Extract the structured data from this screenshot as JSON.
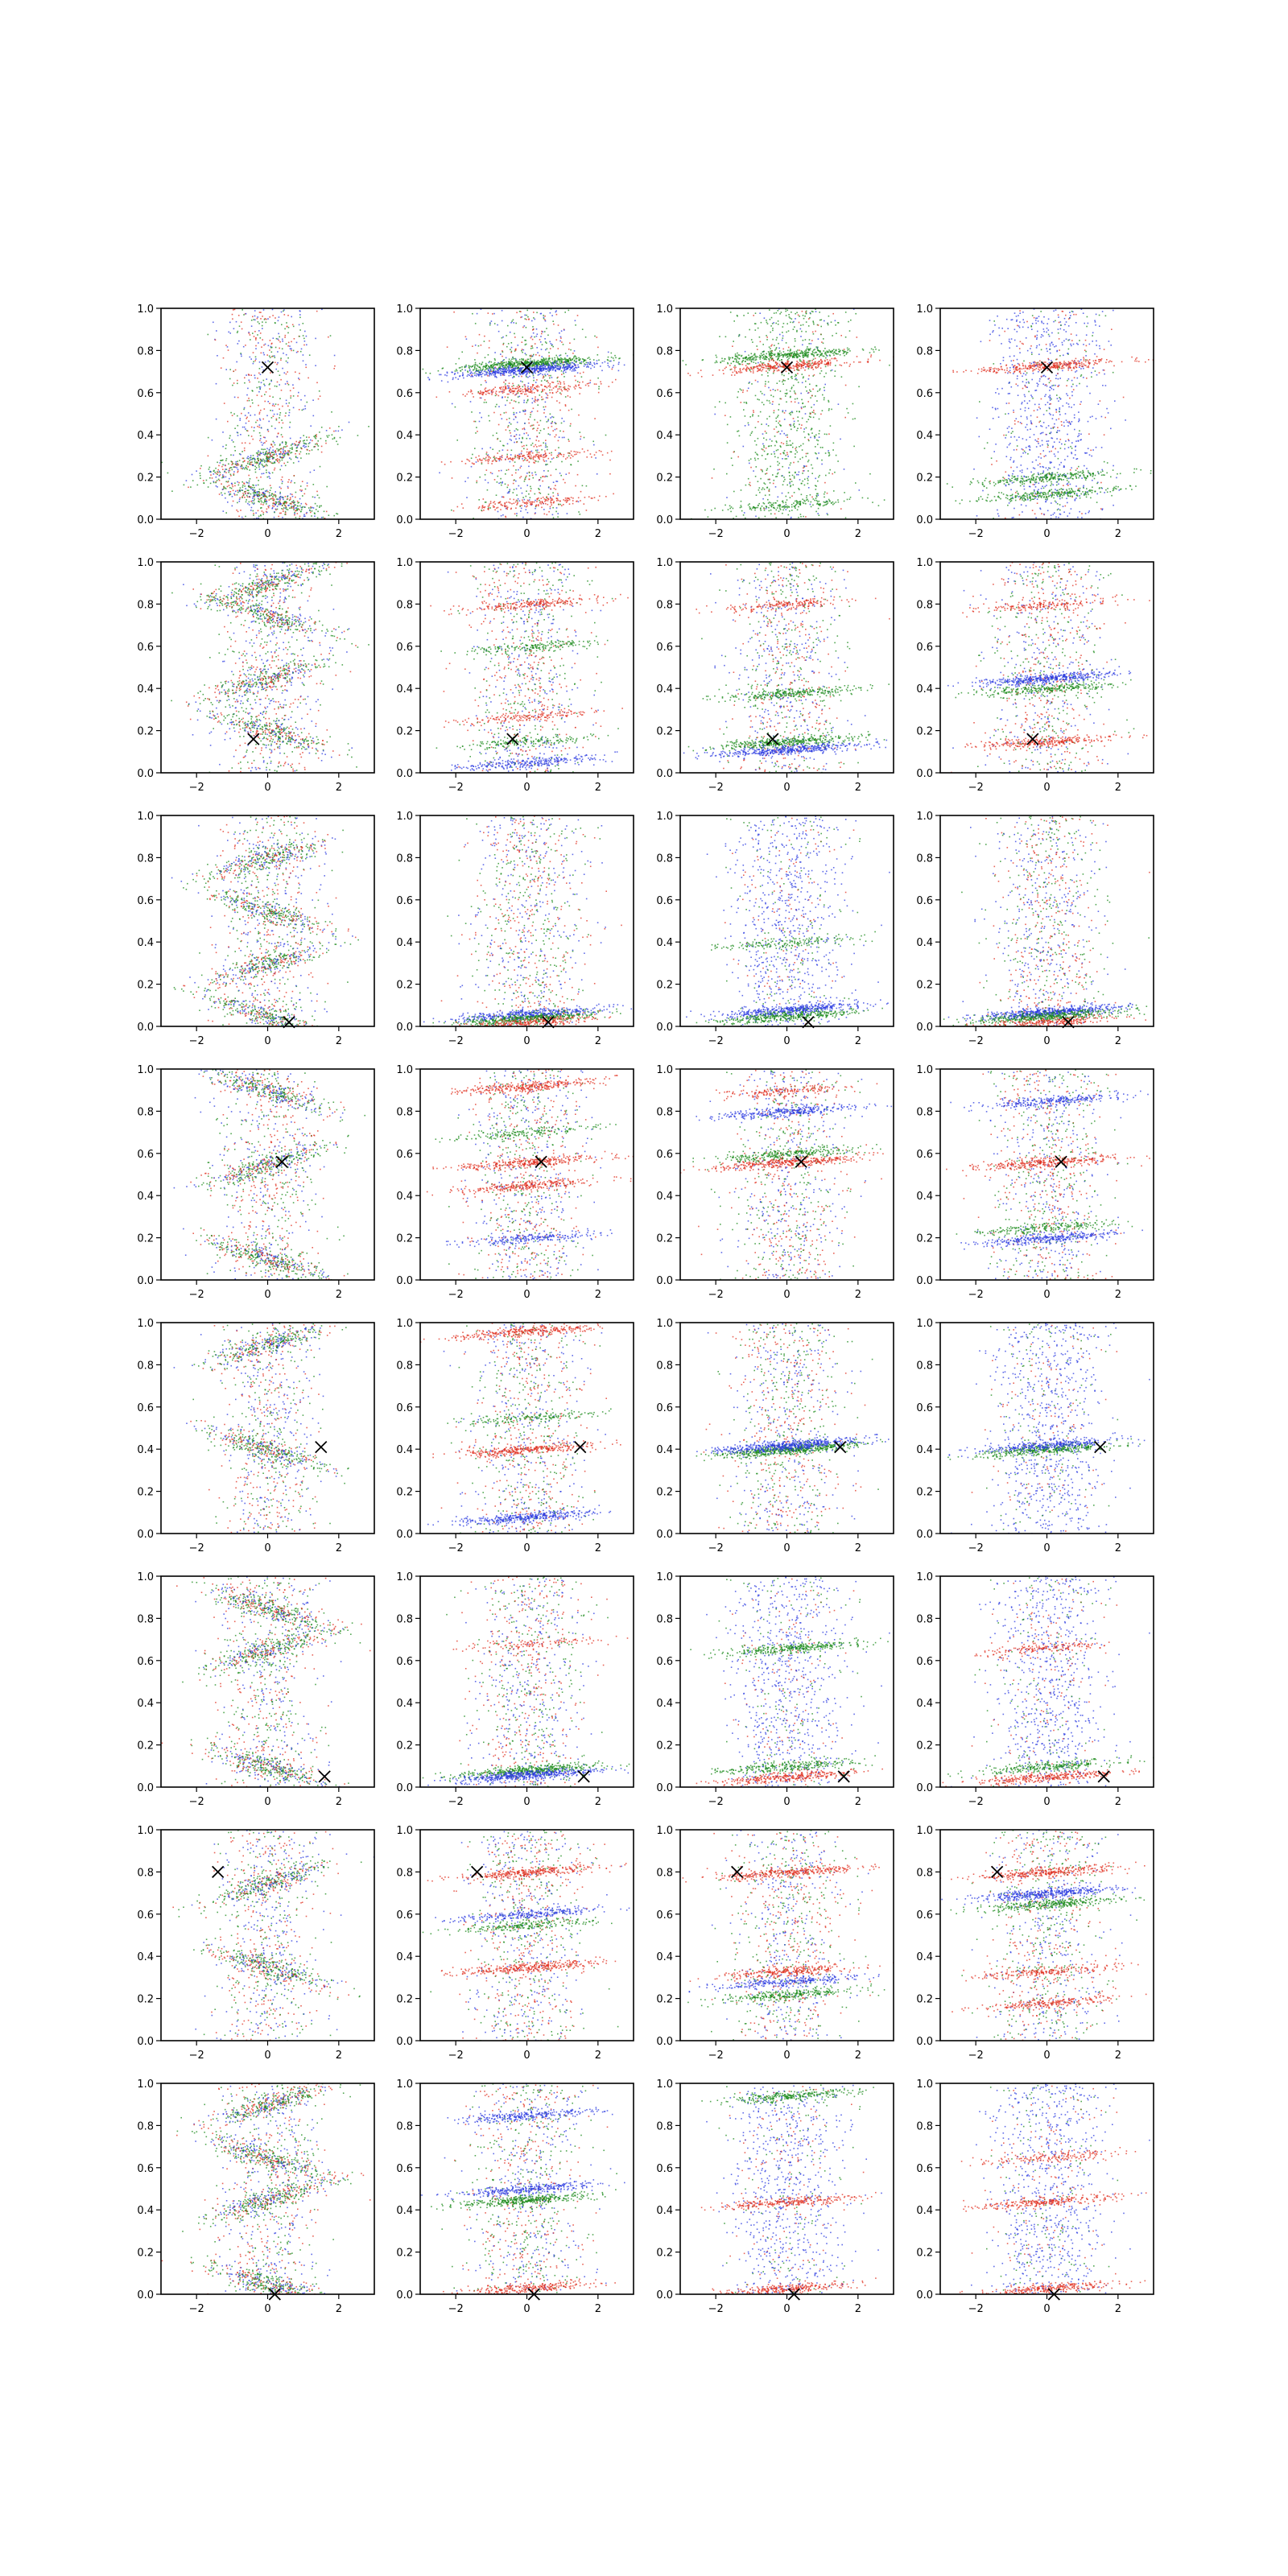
{
  "chart_data": {
    "type": "scatter",
    "title": "",
    "layout": {
      "rows": 8,
      "cols": 4
    },
    "xlim": [
      -3,
      3
    ],
    "ylim": [
      0,
      1
    ],
    "xticks": [
      -2,
      0,
      2
    ],
    "yticks": [
      0.0,
      0.2,
      0.4,
      0.6,
      0.8,
      1.0
    ],
    "xtick_labels": [
      "−2",
      "0",
      "2"
    ],
    "ytick_labels": [
      "0.0",
      "0.2",
      "0.4",
      "0.6",
      "0.8",
      "1.0"
    ],
    "series_colors": {
      "red": "#e03020",
      "green": "#1a8a1a",
      "blue": "#2b3be0"
    },
    "marker": {
      "symbol": "x",
      "color": "#000000"
    },
    "rows": [
      {
        "marker": [
          0.0,
          0.72
        ],
        "panels": [
          {
            "kind": "wave",
            "bands": [
              0.1,
              0.3
            ],
            "density": 1.0
          },
          {
            "kind": "layers",
            "bands": [
              {
                "y": 0.74,
                "c": "green",
                "w": 1
              },
              {
                "y": 0.71,
                "c": "blue",
                "w": 1
              },
              {
                "y": 0.62,
                "c": "red",
                "w": 0.4
              },
              {
                "y": 0.3,
                "c": "red",
                "w": 0.3
              },
              {
                "y": 0.08,
                "c": "red",
                "w": 0.3
              }
            ]
          },
          {
            "kind": "layers",
            "bands": [
              {
                "y": 0.78,
                "c": "green",
                "w": 0.7
              },
              {
                "y": 0.73,
                "c": "red",
                "w": 0.6
              },
              {
                "y": 0.07,
                "c": "green",
                "w": 0.3
              }
            ],
            "cloud": "green"
          },
          {
            "kind": "layers",
            "bands": [
              {
                "y": 0.73,
                "c": "red",
                "w": 0.6
              },
              {
                "y": 0.2,
                "c": "green",
                "w": 0.5
              },
              {
                "y": 0.12,
                "c": "green",
                "w": 0.5
              }
            ],
            "cloud": "blue"
          }
        ]
      },
      {
        "marker": [
          -0.4,
          0.16
        ],
        "panels": [
          {
            "kind": "wave",
            "bands": [
              0.2,
              0.45,
              0.75,
              0.9
            ],
            "density": 0.9
          },
          {
            "kind": "layers",
            "bands": [
              {
                "y": 0.8,
                "c": "red",
                "w": 0.4
              },
              {
                "y": 0.6,
                "c": "green",
                "w": 0.3
              },
              {
                "y": 0.27,
                "c": "red",
                "w": 0.3
              },
              {
                "y": 0.15,
                "c": "green",
                "w": 0.3
              },
              {
                "y": 0.05,
                "c": "blue",
                "w": 0.5
              }
            ]
          },
          {
            "kind": "layers",
            "bands": [
              {
                "y": 0.38,
                "c": "green",
                "w": 0.5
              },
              {
                "y": 0.15,
                "c": "green",
                "w": 0.7
              },
              {
                "y": 0.11,
                "c": "blue",
                "w": 0.8
              },
              {
                "y": 0.8,
                "c": "red",
                "w": 0.3
              }
            ]
          },
          {
            "kind": "layers",
            "bands": [
              {
                "y": 0.45,
                "c": "blue",
                "w": 0.8
              },
              {
                "y": 0.4,
                "c": "green",
                "w": 0.5
              },
              {
                "y": 0.15,
                "c": "red",
                "w": 0.5
              },
              {
                "y": 0.8,
                "c": "red",
                "w": 0.3
              }
            ]
          }
        ]
      },
      {
        "marker": [
          0.6,
          0.02
        ],
        "panels": [
          {
            "kind": "wave",
            "bands": [
              0.05,
              0.3,
              0.55,
              0.8
            ],
            "density": 0.9
          },
          {
            "kind": "layers",
            "bands": [
              {
                "y": 0.06,
                "c": "blue",
                "w": 0.8
              },
              {
                "y": 0.04,
                "c": "green",
                "w": 0.8
              },
              {
                "y": 0.02,
                "c": "red",
                "w": 0.5
              }
            ]
          },
          {
            "kind": "layers",
            "bands": [
              {
                "y": 0.08,
                "c": "blue",
                "w": 0.8
              },
              {
                "y": 0.05,
                "c": "green",
                "w": 0.7
              },
              {
                "y": 0.4,
                "c": "green",
                "w": 0.3
              }
            ],
            "cloud": "blue"
          },
          {
            "kind": "layers",
            "bands": [
              {
                "y": 0.07,
                "c": "blue",
                "w": 1
              },
              {
                "y": 0.05,
                "c": "green",
                "w": 0.8
              },
              {
                "y": 0.02,
                "c": "red",
                "w": 0.5
              }
            ]
          }
        ]
      },
      {
        "marker": [
          0.4,
          0.56
        ],
        "panels": [
          {
            "kind": "wave",
            "bands": [
              0.1,
              0.55,
              0.9
            ],
            "density": 1.0
          },
          {
            "kind": "layers",
            "bands": [
              {
                "y": 0.92,
                "c": "red",
                "w": 0.6
              },
              {
                "y": 0.56,
                "c": "red",
                "w": 0.6
              },
              {
                "y": 0.45,
                "c": "red",
                "w": 0.5
              },
              {
                "y": 0.7,
                "c": "green",
                "w": 0.3
              },
              {
                "y": 0.2,
                "c": "blue",
                "w": 0.4
              }
            ]
          },
          {
            "kind": "layers",
            "bands": [
              {
                "y": 0.8,
                "c": "blue",
                "w": 0.6
              },
              {
                "y": 0.56,
                "c": "red",
                "w": 0.7
              },
              {
                "y": 0.6,
                "c": "green",
                "w": 0.5
              },
              {
                "y": 0.9,
                "c": "red",
                "w": 0.3
              }
            ]
          },
          {
            "kind": "layers",
            "bands": [
              {
                "y": 0.56,
                "c": "red",
                "w": 0.6
              },
              {
                "y": 0.85,
                "c": "blue",
                "w": 0.5
              },
              {
                "y": 0.2,
                "c": "blue",
                "w": 0.6
              },
              {
                "y": 0.25,
                "c": "green",
                "w": 0.4
              }
            ]
          }
        ]
      },
      {
        "marker": [
          1.5,
          0.41
        ],
        "panels": [
          {
            "kind": "wave",
            "bands": [
              0.4,
              0.9
            ],
            "density": 1.0
          },
          {
            "kind": "layers",
            "bands": [
              {
                "y": 0.96,
                "c": "red",
                "w": 0.6
              },
              {
                "y": 0.4,
                "c": "red",
                "w": 0.6
              },
              {
                "y": 0.08,
                "c": "blue",
                "w": 0.7
              },
              {
                "y": 0.55,
                "c": "green",
                "w": 0.3
              }
            ]
          },
          {
            "kind": "layers",
            "bands": [
              {
                "y": 0.4,
                "c": "green",
                "w": 1
              },
              {
                "y": 0.42,
                "c": "blue",
                "w": 1
              }
            ]
          },
          {
            "kind": "layers",
            "bands": [
              {
                "y": 0.4,
                "c": "green",
                "w": 0.7
              },
              {
                "y": 0.42,
                "c": "blue",
                "w": 0.6
              }
            ],
            "cloud": "blue"
          }
        ]
      },
      {
        "marker": [
          1.6,
          0.05
        ],
        "panels": [
          {
            "kind": "wave",
            "bands": [
              0.1,
              0.65,
              0.85
            ],
            "density": 1.0
          },
          {
            "kind": "layers",
            "bands": [
              {
                "y": 0.08,
                "c": "green",
                "w": 0.8
              },
              {
                "y": 0.06,
                "c": "blue",
                "w": 0.9
              },
              {
                "y": 0.68,
                "c": "red",
                "w": 0.2
              }
            ]
          },
          {
            "kind": "layers",
            "bands": [
              {
                "y": 0.66,
                "c": "green",
                "w": 0.6
              },
              {
                "y": 0.05,
                "c": "red",
                "w": 0.6
              },
              {
                "y": 0.1,
                "c": "green",
                "w": 0.5
              }
            ],
            "cloud": "blue"
          },
          {
            "kind": "layers",
            "bands": [
              {
                "y": 0.05,
                "c": "red",
                "w": 0.6
              },
              {
                "y": 0.66,
                "c": "red",
                "w": 0.3
              },
              {
                "y": 0.1,
                "c": "green",
                "w": 0.5
              }
            ],
            "cloud": "blue"
          }
        ]
      },
      {
        "marker": [
          -1.4,
          0.8
        ],
        "panels": [
          {
            "kind": "wave",
            "bands": [
              0.35,
              0.75
            ],
            "density": 1.0
          },
          {
            "kind": "layers",
            "bands": [
              {
                "y": 0.8,
                "c": "red",
                "w": 0.6
              },
              {
                "y": 0.35,
                "c": "red",
                "w": 0.6
              },
              {
                "y": 0.55,
                "c": "green",
                "w": 0.4
              },
              {
                "y": 0.6,
                "c": "blue",
                "w": 0.5
              }
            ]
          },
          {
            "kind": "layers",
            "bands": [
              {
                "y": 0.8,
                "c": "red",
                "w": 0.6
              },
              {
                "y": 0.33,
                "c": "red",
                "w": 0.5
              },
              {
                "y": 0.22,
                "c": "green",
                "w": 0.5
              },
              {
                "y": 0.28,
                "c": "blue",
                "w": 0.5
              }
            ]
          },
          {
            "kind": "layers",
            "bands": [
              {
                "y": 0.8,
                "c": "red",
                "w": 0.6
              },
              {
                "y": 0.7,
                "c": "blue",
                "w": 0.8
              },
              {
                "y": 0.65,
                "c": "green",
                "w": 0.6
              },
              {
                "y": 0.33,
                "c": "red",
                "w": 0.4
              },
              {
                "y": 0.18,
                "c": "red",
                "w": 0.4
              }
            ]
          }
        ]
      },
      {
        "marker": [
          0.2,
          0.0
        ],
        "panels": [
          {
            "kind": "wave",
            "bands": [
              0.05,
              0.45,
              0.65,
              0.9
            ],
            "density": 1.0
          },
          {
            "kind": "layers",
            "bands": [
              {
                "y": 0.45,
                "c": "green",
                "w": 0.7
              },
              {
                "y": 0.5,
                "c": "blue",
                "w": 0.6
              },
              {
                "y": 0.85,
                "c": "blue",
                "w": 0.5
              },
              {
                "y": 0.03,
                "c": "red",
                "w": 0.5
              }
            ]
          },
          {
            "kind": "layers",
            "bands": [
              {
                "y": 0.44,
                "c": "red",
                "w": 0.5
              },
              {
                "y": 0.94,
                "c": "green",
                "w": 0.5
              },
              {
                "y": 0.03,
                "c": "red",
                "w": 0.5
              }
            ],
            "cloud": "blue"
          },
          {
            "kind": "layers",
            "bands": [
              {
                "y": 0.44,
                "c": "red",
                "w": 0.5
              },
              {
                "y": 0.03,
                "c": "red",
                "w": 0.5
              },
              {
                "y": 0.65,
                "c": "red",
                "w": 0.3
              }
            ],
            "cloud": "blue"
          }
        ]
      }
    ]
  }
}
